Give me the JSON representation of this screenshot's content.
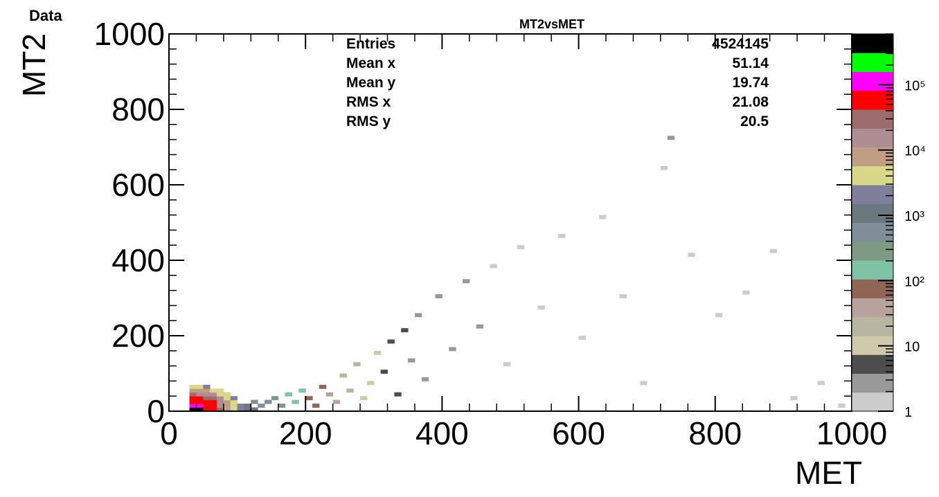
{
  "top_label": "Data",
  "stats": {
    "title": "MT2vsMET",
    "rows": [
      {
        "label": "Entries",
        "value": "4524145"
      },
      {
        "label": "Mean x",
        "value": "51.14"
      },
      {
        "label": "Mean y",
        "value": "19.74"
      },
      {
        "label": "RMS x",
        "value": "21.08"
      },
      {
        "label": "RMS y",
        "value": "20.5"
      }
    ]
  },
  "chart_data": {
    "type": "heatmap",
    "title": "MT2vsMET",
    "xlabel": "MET",
    "ylabel": "MT2",
    "xlim": [
      0,
      1000
    ],
    "ylim": [
      0,
      1000
    ],
    "x_ticks": [
      "0",
      "200",
      "400",
      "600",
      "800",
      "1000"
    ],
    "y_ticks": [
      "0",
      "200",
      "400",
      "600",
      "800",
      "1000"
    ],
    "z_scale": "log",
    "z_tick_labels": [
      "1",
      "10",
      "10²",
      "10³",
      "10⁴",
      "10⁵"
    ],
    "z_ticks": [
      1,
      10,
      100,
      1000,
      10000,
      100000
    ],
    "palette": [
      "#cccccc",
      "#999999",
      "#4d4d4d",
      "#d1c9ac",
      "#b7b6a1",
      "#b8a29b",
      "#8f6556",
      "#7fc2a5",
      "#7f9a84",
      "#7f8e98",
      "#6b7880",
      "#7f7f9c",
      "#d9d78a",
      "#c09e84",
      "#af8e93",
      "#9b6b6e",
      "#ff0000",
      "#ff00ff",
      "#00ff00",
      "#000000"
    ],
    "z_max": 600000,
    "bin_width": 10,
    "points": [
      {
        "x": 35,
        "y": 5,
        "z": 500000
      },
      {
        "x": 45,
        "y": 5,
        "z": 500000
      },
      {
        "x": 55,
        "y": 5,
        "z": 80000
      },
      {
        "x": 65,
        "y": 5,
        "z": 50000
      },
      {
        "x": 35,
        "y": 15,
        "z": 150000
      },
      {
        "x": 45,
        "y": 15,
        "z": 150000
      },
      {
        "x": 55,
        "y": 15,
        "z": 50000
      },
      {
        "x": 65,
        "y": 15,
        "z": 60000
      },
      {
        "x": 35,
        "y": 25,
        "z": 80000
      },
      {
        "x": 45,
        "y": 25,
        "z": 60000
      },
      {
        "x": 55,
        "y": 25,
        "z": 60000
      },
      {
        "x": 65,
        "y": 25,
        "z": 60000
      },
      {
        "x": 35,
        "y": 35,
        "z": 60000
      },
      {
        "x": 45,
        "y": 35,
        "z": 60000
      },
      {
        "x": 55,
        "y": 35,
        "z": 25000
      },
      {
        "x": 65,
        "y": 35,
        "z": 25000
      },
      {
        "x": 75,
        "y": 5,
        "z": 25000
      },
      {
        "x": 75,
        "y": 15,
        "z": 20000
      },
      {
        "x": 75,
        "y": 25,
        "z": 15000
      },
      {
        "x": 75,
        "y": 35,
        "z": 12000
      },
      {
        "x": 35,
        "y": 45,
        "z": 25000
      },
      {
        "x": 45,
        "y": 45,
        "z": 20000
      },
      {
        "x": 55,
        "y": 45,
        "z": 15000
      },
      {
        "x": 65,
        "y": 45,
        "z": 12000
      },
      {
        "x": 35,
        "y": 55,
        "z": 8000
      },
      {
        "x": 45,
        "y": 55,
        "z": 8000
      },
      {
        "x": 55,
        "y": 55,
        "z": 6000
      },
      {
        "x": 65,
        "y": 55,
        "z": 5000
      },
      {
        "x": 85,
        "y": 5,
        "z": 8000
      },
      {
        "x": 85,
        "y": 15,
        "z": 8000
      },
      {
        "x": 85,
        "y": 25,
        "z": 6000
      },
      {
        "x": 85,
        "y": 35,
        "z": 5000
      },
      {
        "x": 95,
        "y": 5,
        "z": 5000
      },
      {
        "x": 95,
        "y": 15,
        "z": 4000
      },
      {
        "x": 95,
        "y": 25,
        "z": 3000
      },
      {
        "x": 95,
        "y": 35,
        "z": 2500
      },
      {
        "x": 35,
        "y": 65,
        "z": 3000
      },
      {
        "x": 45,
        "y": 65,
        "z": 3000
      },
      {
        "x": 55,
        "y": 65,
        "z": 2500
      },
      {
        "x": 75,
        "y": 45,
        "z": 5000
      },
      {
        "x": 75,
        "y": 55,
        "z": 3000
      },
      {
        "x": 85,
        "y": 45,
        "z": 3000
      },
      {
        "x": 105,
        "y": 5,
        "z": 2000
      },
      {
        "x": 105,
        "y": 15,
        "z": 1800
      },
      {
        "x": 115,
        "y": 5,
        "z": 1200
      },
      {
        "x": 115,
        "y": 15,
        "z": 1000
      },
      {
        "x": 125,
        "y": 5,
        "z": 800
      },
      {
        "x": 125,
        "y": 25,
        "z": 700
      },
      {
        "x": 135,
        "y": 15,
        "z": 500
      },
      {
        "x": 145,
        "y": 25,
        "z": 400
      },
      {
        "x": 155,
        "y": 35,
        "z": 350
      },
      {
        "x": 165,
        "y": 15,
        "z": 250
      },
      {
        "x": 175,
        "y": 45,
        "z": 200
      },
      {
        "x": 185,
        "y": 25,
        "z": 150
      },
      {
        "x": 195,
        "y": 55,
        "z": 120
      },
      {
        "x": 205,
        "y": 35,
        "z": 100
      },
      {
        "x": 215,
        "y": 15,
        "z": 80
      },
      {
        "x": 225,
        "y": 65,
        "z": 60
      },
      {
        "x": 235,
        "y": 45,
        "z": 45
      },
      {
        "x": 245,
        "y": 25,
        "z": 35
      },
      {
        "x": 255,
        "y": 95,
        "z": 25
      },
      {
        "x": 265,
        "y": 55,
        "z": 20
      },
      {
        "x": 275,
        "y": 125,
        "z": 15
      },
      {
        "x": 285,
        "y": 35,
        "z": 12
      },
      {
        "x": 295,
        "y": 75,
        "z": 10
      },
      {
        "x": 305,
        "y": 155,
        "z": 8
      },
      {
        "x": 315,
        "y": 105,
        "z": 6
      },
      {
        "x": 325,
        "y": 185,
        "z": 5
      },
      {
        "x": 335,
        "y": 45,
        "z": 4
      },
      {
        "x": 345,
        "y": 215,
        "z": 4
      },
      {
        "x": 355,
        "y": 135,
        "z": 3
      },
      {
        "x": 365,
        "y": 255,
        "z": 3
      },
      {
        "x": 375,
        "y": 85,
        "z": 3
      },
      {
        "x": 395,
        "y": 305,
        "z": 2
      },
      {
        "x": 415,
        "y": 165,
        "z": 2
      },
      {
        "x": 435,
        "y": 345,
        "z": 2
      },
      {
        "x": 455,
        "y": 225,
        "z": 2
      },
      {
        "x": 475,
        "y": 385,
        "z": 1
      },
      {
        "x": 495,
        "y": 125,
        "z": 1
      },
      {
        "x": 515,
        "y": 435,
        "z": 1
      },
      {
        "x": 545,
        "y": 275,
        "z": 1
      },
      {
        "x": 575,
        "y": 465,
        "z": 1
      },
      {
        "x": 605,
        "y": 195,
        "z": 1
      },
      {
        "x": 635,
        "y": 515,
        "z": 1
      },
      {
        "x": 665,
        "y": 305,
        "z": 1
      },
      {
        "x": 695,
        "y": 75,
        "z": 1
      },
      {
        "x": 725,
        "y": 645,
        "z": 1
      },
      {
        "x": 735,
        "y": 725,
        "z": 2
      },
      {
        "x": 765,
        "y": 415,
        "z": 1
      },
      {
        "x": 805,
        "y": 255,
        "z": 1
      },
      {
        "x": 845,
        "y": 315,
        "z": 1
      },
      {
        "x": 885,
        "y": 425,
        "z": 1
      },
      {
        "x": 915,
        "y": 35,
        "z": 1
      },
      {
        "x": 955,
        "y": 75,
        "z": 1
      },
      {
        "x": 985,
        "y": 15,
        "z": 1
      }
    ]
  }
}
